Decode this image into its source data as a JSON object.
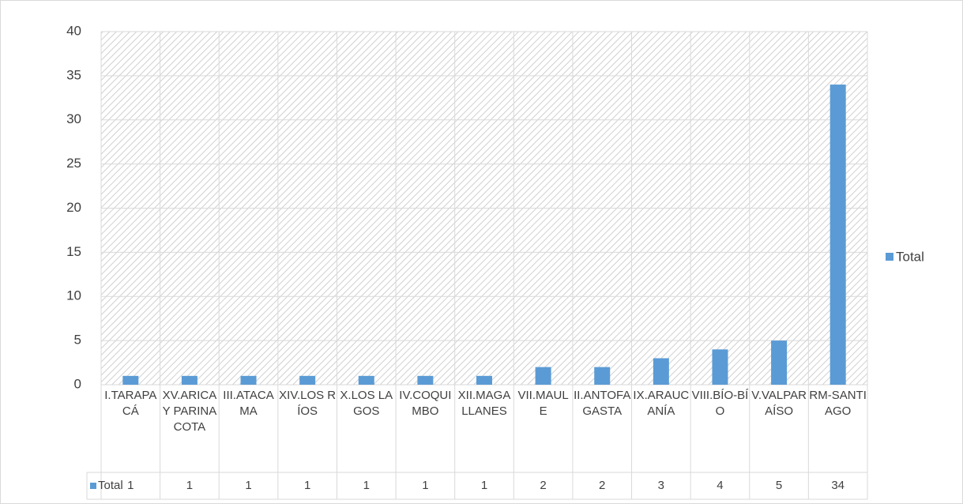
{
  "chart_data": {
    "type": "bar",
    "categories": [
      "I.TARAPACÁ",
      "XV.ARICA Y PARINACOTA",
      "III.ATACAMA",
      "XIV.LOS RÍOS",
      "X.LOS LAGOS",
      "IV.COQUIMBO",
      "XII.MAGALLANES",
      "VII.MAULE",
      "II.ANTOFAGASTA",
      "IX.ARAUCANÍA",
      "VIII.BÍO-BÍO",
      "V.VALPARAÍSO",
      "RM-SANTIAGO"
    ],
    "series": [
      {
        "name": "Total",
        "color": "#5b9bd5",
        "values": [
          1,
          1,
          1,
          1,
          1,
          1,
          1,
          2,
          2,
          3,
          4,
          5,
          34
        ]
      }
    ],
    "ylim": [
      0,
      40
    ],
    "yticks": [
      0,
      5,
      10,
      15,
      20,
      25,
      30,
      35,
      40
    ],
    "grid": true,
    "legend": "right",
    "data_table": true
  }
}
